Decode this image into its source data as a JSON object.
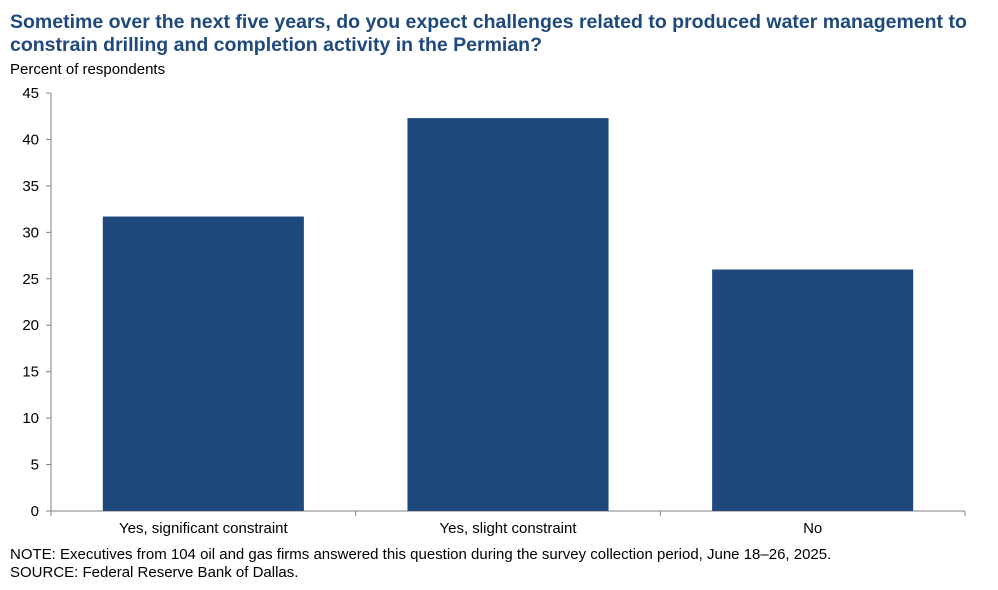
{
  "title": "Sometime over the next five years, do you expect challenges related to produced water management to constrain drilling and completion activity in the Permian?",
  "ylabel": "Percent of respondents",
  "note": "NOTE: Executives from 104 oil and gas firms answered this question during the survey collection period, June 18–26, 2025.",
  "source": "SOURCE: Federal Reserve Bank of Dallas.",
  "colors": {
    "bar": "#1f497d",
    "axis": "#808080"
  },
  "chart_data": {
    "type": "bar",
    "title": "Sometime over the next five years, do you expect challenges related to produced water management to constrain drilling and completion activity in the Permian?",
    "xlabel": "",
    "ylabel": "Percent of respondents",
    "categories": [
      "Yes, significant constraint",
      "Yes, slight constraint",
      "No"
    ],
    "values": [
      31.7,
      42.3,
      26.0
    ],
    "ylim": [
      0,
      45
    ],
    "yticks": [
      0,
      5,
      10,
      15,
      20,
      25,
      30,
      35,
      40,
      45
    ],
    "grid": false,
    "legend": "none"
  }
}
